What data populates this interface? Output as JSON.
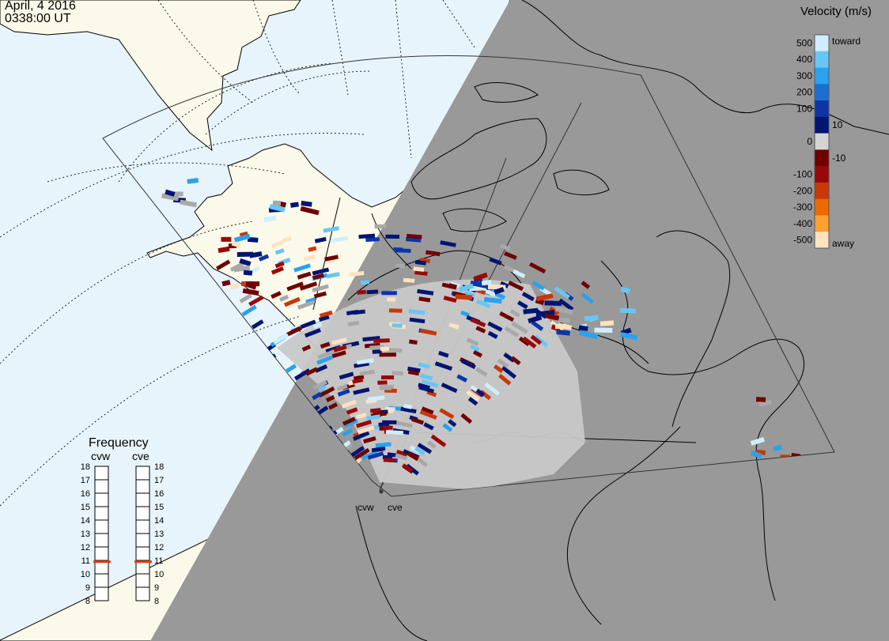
{
  "header": {
    "date": "April, 4 2016",
    "time": "0338:00 UT"
  },
  "colors": {
    "ocean": "#e8f4fc",
    "land_day": "#fbfaea",
    "night": "#999999",
    "coast": "#000000",
    "low_velocity_gray": "#c8c8c8"
  },
  "colorbar": {
    "title": "Velocity (m/s)",
    "tick_labels": [
      "500",
      "400",
      "300",
      "200",
      "100",
      "10",
      "0",
      "-10",
      "-100",
      "-200",
      "-300",
      "-400",
      "-500"
    ],
    "end_labels": {
      "top": "toward",
      "bottom": "away"
    },
    "stops": [
      {
        "value": 500,
        "color": "#cfeeff"
      },
      {
        "value": 400,
        "color": "#68c6f6"
      },
      {
        "value": 300,
        "color": "#2aa2ee"
      },
      {
        "value": 200,
        "color": "#1c6fd0"
      },
      {
        "value": 100,
        "color": "#0d35a6"
      },
      {
        "value": 10,
        "color": "#001472"
      },
      {
        "value": 0,
        "color": "#d4d4d4"
      },
      {
        "value": -10,
        "color": "#6e0000"
      },
      {
        "value": -100,
        "color": "#990808"
      },
      {
        "value": -200,
        "color": "#c83808"
      },
      {
        "value": -300,
        "color": "#ee6a00"
      },
      {
        "value": -400,
        "color": "#ffa030"
      },
      {
        "value": -500,
        "color": "#ffe2c0"
      }
    ]
  },
  "frequency_panel": {
    "title": "Frequency",
    "radars": [
      {
        "name": "cvw",
        "frequency_mhz": 10.9
      },
      {
        "name": "cve",
        "frequency_mhz": 10.9
      }
    ],
    "scale": [
      "18",
      "17",
      "16",
      "15",
      "14",
      "13",
      "12",
      "11",
      "10",
      "9",
      "8"
    ],
    "marker_color": "#e04010"
  },
  "radars": [
    {
      "name": "cvw",
      "label": "cvw"
    },
    {
      "name": "cve",
      "label": "cve"
    }
  ]
}
